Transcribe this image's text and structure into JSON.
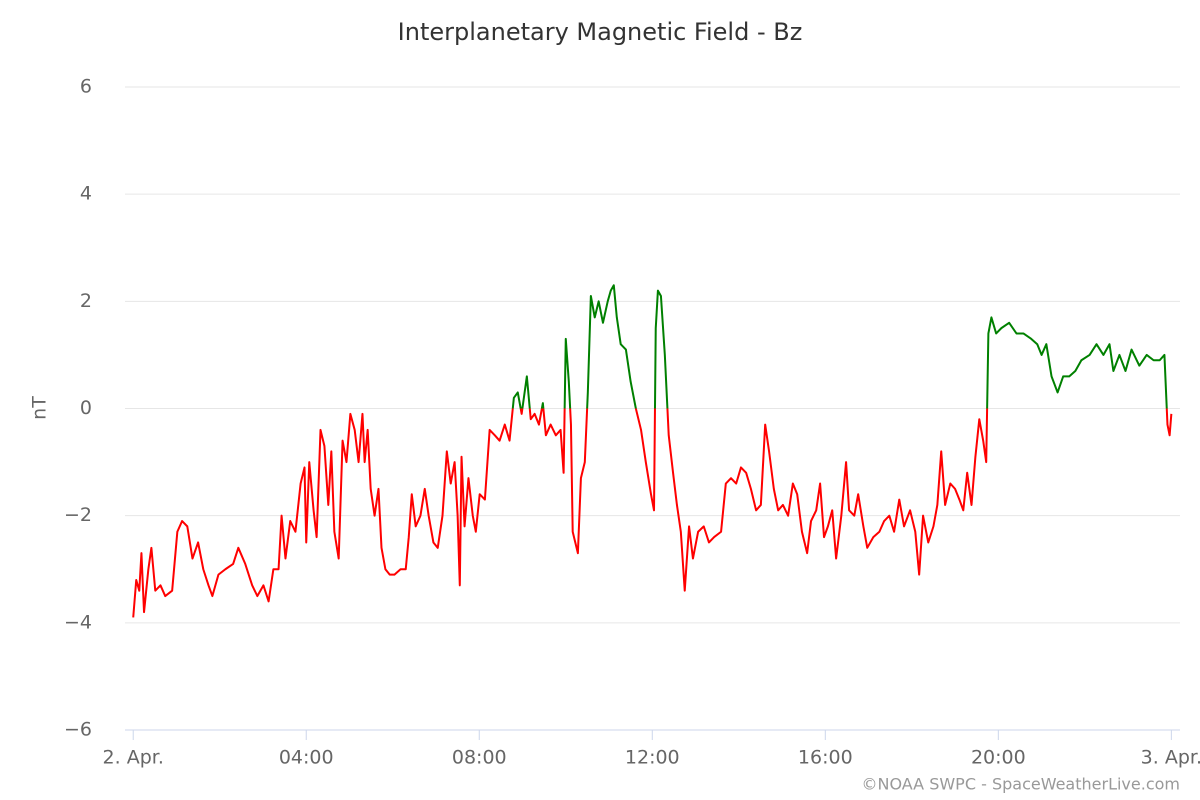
{
  "chart_data": {
    "type": "line",
    "title": "Interplanetary Magnetic Field - Bz",
    "y_label": "nT",
    "credit": "©NOAA SWPC - SpaceWeatherLive.com",
    "x": [
      0,
      0.07,
      0.14,
      0.19,
      0.25,
      0.35,
      0.42,
      0.51,
      0.63,
      0.74,
      0.9,
      1.02,
      1.13,
      1.25,
      1.37,
      1.5,
      1.62,
      1.74,
      1.83,
      1.97,
      2.13,
      2.31,
      2.43,
      2.59,
      2.75,
      2.87,
      3.01,
      3.13,
      3.24,
      3.36,
      3.43,
      3.52,
      3.63,
      3.75,
      3.87,
      3.96,
      4.0,
      4.07,
      4.17,
      4.24,
      4.33,
      4.42,
      4.51,
      4.58,
      4.65,
      4.75,
      4.84,
      4.93,
      5.02,
      5.12,
      5.21,
      5.3,
      5.35,
      5.42,
      5.49,
      5.58,
      5.67,
      5.74,
      5.83,
      5.93,
      6.04,
      6.18,
      6.3,
      6.37,
      6.44,
      6.53,
      6.64,
      6.74,
      6.83,
      6.94,
      7.04,
      7.15,
      7.25,
      7.34,
      7.43,
      7.5,
      7.55,
      7.59,
      7.66,
      7.75,
      7.85,
      7.92,
      8.01,
      8.13,
      8.24,
      8.36,
      8.47,
      8.59,
      8.7,
      8.8,
      8.89,
      8.98,
      9.1,
      9.19,
      9.28,
      9.38,
      9.47,
      9.54,
      9.65,
      9.77,
      9.88,
      9.95,
      10.0,
      10.07,
      10.12,
      10.16,
      10.28,
      10.35,
      10.44,
      10.51,
      10.58,
      10.67,
      10.76,
      10.86,
      10.97,
      11.04,
      11.11,
      11.18,
      11.27,
      11.39,
      11.5,
      11.62,
      11.74,
      11.85,
      11.97,
      12.04,
      12.08,
      12.13,
      12.2,
      12.29,
      12.38,
      12.48,
      12.57,
      12.66,
      12.75,
      12.85,
      12.94,
      13.06,
      13.19,
      13.31,
      13.43,
      13.59,
      13.7,
      13.82,
      13.94,
      14.05,
      14.17,
      14.28,
      14.4,
      14.51,
      14.61,
      14.7,
      14.81,
      14.91,
      15.02,
      15.14,
      15.25,
      15.35,
      15.46,
      15.58,
      15.67,
      15.79,
      15.88,
      15.97,
      16.06,
      16.16,
      16.25,
      16.37,
      16.48,
      16.55,
      16.67,
      16.76,
      16.88,
      16.97,
      17.11,
      17.25,
      17.36,
      17.48,
      17.59,
      17.71,
      17.82,
      17.96,
      18.08,
      18.17,
      18.26,
      18.38,
      18.5,
      18.59,
      18.68,
      18.77,
      18.89,
      19.0,
      19.1,
      19.19,
      19.28,
      19.38,
      19.47,
      19.56,
      19.65,
      19.72,
      19.77,
      19.84,
      19.95,
      20.07,
      20.25,
      20.42,
      20.58,
      20.76,
      20.9,
      21.0,
      21.11,
      21.23,
      21.37,
      21.5,
      21.64,
      21.78,
      21.92,
      22.11,
      22.27,
      22.43,
      22.57,
      22.66,
      22.8,
      22.94,
      23.08,
      23.26,
      23.43,
      23.59,
      23.73,
      23.84,
      23.91,
      23.96,
      24.0
    ],
    "values": [
      -3.9,
      -3.2,
      -3.4,
      -2.7,
      -3.8,
      -3.0,
      -2.6,
      -3.4,
      -3.3,
      -3.5,
      -3.4,
      -2.3,
      -2.1,
      -2.2,
      -2.8,
      -2.5,
      -3.0,
      -3.3,
      -3.5,
      -3.1,
      -3.0,
      -2.9,
      -2.6,
      -2.9,
      -3.3,
      -3.5,
      -3.3,
      -3.6,
      -3.0,
      -3.0,
      -2.0,
      -2.8,
      -2.1,
      -2.3,
      -1.4,
      -1.1,
      -2.5,
      -1.0,
      -1.9,
      -2.4,
      -0.4,
      -0.7,
      -1.8,
      -0.8,
      -2.3,
      -2.8,
      -0.6,
      -1.0,
      -0.1,
      -0.4,
      -1.0,
      -0.1,
      -1.0,
      -0.4,
      -1.5,
      -2.0,
      -1.5,
      -2.6,
      -3.0,
      -3.1,
      -3.1,
      -3.0,
      -3.0,
      -2.4,
      -1.6,
      -2.2,
      -2.0,
      -1.5,
      -2.0,
      -2.5,
      -2.6,
      -2.0,
      -0.8,
      -1.4,
      -1.0,
      -2.0,
      -3.3,
      -0.9,
      -2.2,
      -1.3,
      -2.0,
      -2.3,
      -1.6,
      -1.7,
      -0.4,
      -0.5,
      -0.6,
      -0.3,
      -0.6,
      0.2,
      0.3,
      -0.1,
      0.6,
      -0.2,
      -0.1,
      -0.3,
      0.1,
      -0.5,
      -0.3,
      -0.5,
      -0.4,
      -1.2,
      1.3,
      0.5,
      -0.3,
      -2.3,
      -2.7,
      -1.3,
      -1.0,
      0.3,
      2.1,
      1.7,
      2.0,
      1.6,
      2.0,
      2.2,
      2.3,
      1.7,
      1.2,
      1.1,
      0.5,
      0.0,
      -0.4,
      -1.0,
      -1.6,
      -1.9,
      1.5,
      2.2,
      2.1,
      1.0,
      -0.5,
      -1.2,
      -1.8,
      -2.3,
      -3.4,
      -2.2,
      -2.8,
      -2.3,
      -2.2,
      -2.5,
      -2.4,
      -2.3,
      -1.4,
      -1.3,
      -1.4,
      -1.1,
      -1.2,
      -1.5,
      -1.9,
      -1.8,
      -0.3,
      -0.8,
      -1.5,
      -1.9,
      -1.8,
      -2.0,
      -1.4,
      -1.6,
      -2.3,
      -2.7,
      -2.1,
      -1.9,
      -1.4,
      -2.4,
      -2.2,
      -1.9,
      -2.8,
      -2.0,
      -1.0,
      -1.9,
      -2.0,
      -1.6,
      -2.2,
      -2.6,
      -2.4,
      -2.3,
      -2.1,
      -2.0,
      -2.3,
      -1.7,
      -2.2,
      -1.9,
      -2.3,
      -3.1,
      -2.0,
      -2.5,
      -2.2,
      -1.8,
      -0.8,
      -1.8,
      -1.4,
      -1.5,
      -1.7,
      -1.9,
      -1.2,
      -1.8,
      -0.9,
      -0.2,
      -0.6,
      -1.0,
      1.4,
      1.7,
      1.4,
      1.5,
      1.6,
      1.4,
      1.4,
      1.3,
      1.2,
      1.0,
      1.2,
      0.6,
      0.3,
      0.6,
      0.6,
      0.7,
      0.9,
      1.0,
      1.2,
      1.0,
      1.2,
      0.7,
      1.0,
      0.7,
      1.1,
      0.8,
      1.0,
      0.9,
      0.9,
      1.0,
      -0.3,
      -0.5,
      -0.1
    ],
    "threshold": 0,
    "color_above": "#008000",
    "color_below": "#ff0000",
    "xlim": [
      -0.19,
      24.2
    ],
    "ylim": [
      -6,
      6
    ],
    "xticks": [
      {
        "value": 0,
        "label": "2. Apr."
      },
      {
        "value": 4,
        "label": "04:00"
      },
      {
        "value": 8,
        "label": "08:00"
      },
      {
        "value": 12,
        "label": "12:00"
      },
      {
        "value": 16,
        "label": "16:00"
      },
      {
        "value": 20,
        "label": "20:00"
      },
      {
        "value": 24,
        "label": "3. Apr."
      }
    ],
    "yticks": [
      {
        "value": -6,
        "label": "−6"
      },
      {
        "value": -4,
        "label": "−4"
      },
      {
        "value": -2,
        "label": "−2"
      },
      0,
      2,
      4,
      6
    ],
    "grid": true
  }
}
